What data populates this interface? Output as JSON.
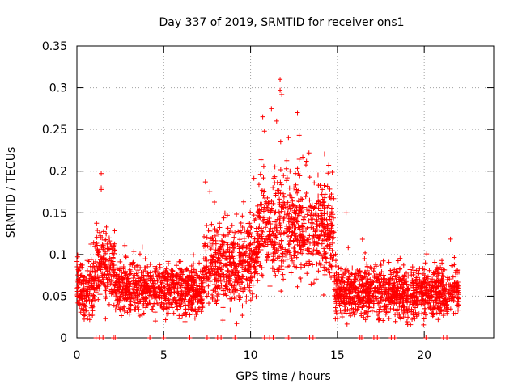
{
  "chart_data": {
    "type": "scatter",
    "title": "Day 337 of 2019, SRMTID for receiver ons1",
    "xlabel": "GPS time / hours",
    "ylabel": "SRMTID / TECUs",
    "xlim": [
      0,
      24
    ],
    "ylim": [
      0,
      0.35
    ],
    "x_ticks": [
      0,
      5,
      10,
      15,
      20
    ],
    "x_tick_labels": [
      "0",
      "5",
      "10",
      "15",
      "20"
    ],
    "y_ticks": [
      0,
      0.05,
      0.1,
      0.15,
      0.2,
      0.25,
      0.3,
      0.35
    ],
    "y_tick_labels": [
      "0",
      "0.05",
      "0.1",
      "0.15",
      "0.2",
      "0.25",
      "0.3",
      "0.35"
    ],
    "grid": true,
    "marker": "+",
    "series_color": "#ff0000",
    "series": [
      {
        "name": "SRMTID",
        "points_estimated_envelope": [
          {
            "x_range": [
              0.0,
              1.0
            ],
            "y_center": 0.06,
            "y_spread": 0.03
          },
          {
            "x_range": [
              1.0,
              2.2
            ],
            "y_center": 0.085,
            "y_spread": 0.035
          },
          {
            "x_range": [
              2.2,
              7.3
            ],
            "y_center": 0.058,
            "y_spread": 0.025
          },
          {
            "x_range": [
              7.3,
              10.4
            ],
            "y_center": 0.09,
            "y_spread": 0.04
          },
          {
            "x_range": [
              10.4,
              14.8
            ],
            "y_center": 0.13,
            "y_spread": 0.05
          },
          {
            "x_range": [
              14.8,
              22.0
            ],
            "y_center": 0.055,
            "y_spread": 0.025
          }
        ],
        "notable_points": [
          {
            "x": 1.4,
            "y": 0.197
          },
          {
            "x": 1.4,
            "y": 0.18
          },
          {
            "x": 1.4,
            "y": 0.178
          },
          {
            "x": 7.4,
            "y": 0.187
          },
          {
            "x": 10.7,
            "y": 0.265
          },
          {
            "x": 10.8,
            "y": 0.248
          },
          {
            "x": 11.2,
            "y": 0.275
          },
          {
            "x": 11.5,
            "y": 0.26
          },
          {
            "x": 11.7,
            "y": 0.31
          },
          {
            "x": 11.7,
            "y": 0.297
          },
          {
            "x": 11.8,
            "y": 0.292
          },
          {
            "x": 12.7,
            "y": 0.27
          },
          {
            "x": 12.8,
            "y": 0.243
          },
          {
            "x": 14.5,
            "y": 0.207
          },
          {
            "x": 15.5,
            "y": 0.15
          }
        ],
        "zero_points_x": [
          1.1,
          1.3,
          1.5,
          2.1,
          2.2,
          4.2,
          5.0,
          6.5,
          7.5,
          8.1,
          8.3,
          9.1,
          10.8,
          11.1,
          11.3,
          12.1,
          12.2,
          13.4,
          13.6,
          16.3,
          16.4,
          17.1,
          17.3,
          18.1,
          18.3,
          20.1,
          21.1,
          21.3
        ]
      }
    ]
  }
}
